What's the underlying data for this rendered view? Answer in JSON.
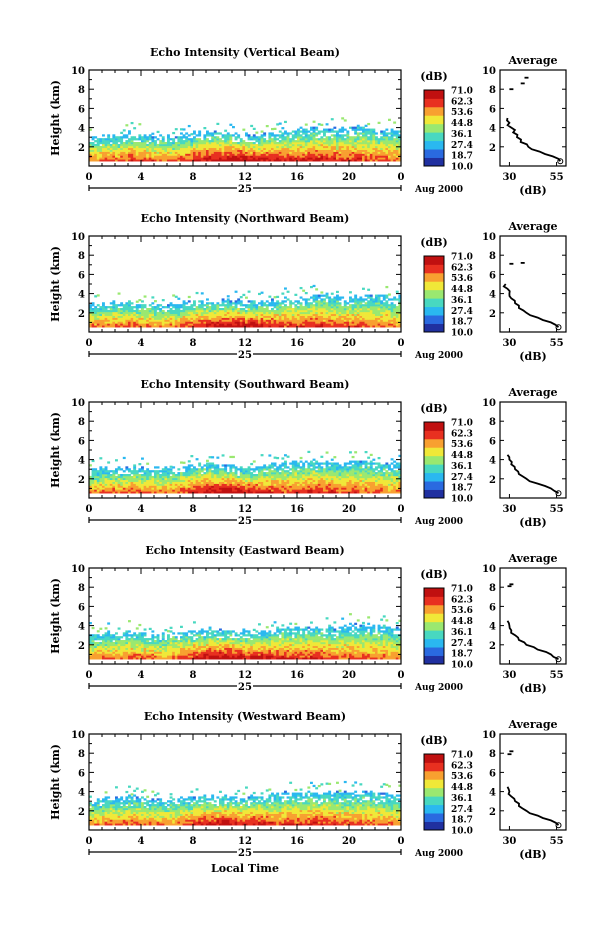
{
  "x_axis_label": "Local Time",
  "colorbar": {
    "unit": "(dB)",
    "ticks": [
      "71.0",
      "62.3",
      "53.6",
      "44.8",
      "36.1",
      "27.4",
      "18.7",
      "10.0"
    ],
    "colors": [
      "#2030a0",
      "#2a6ae0",
      "#2ab8f0",
      "#48d8c0",
      "#9ae870",
      "#f0e838",
      "#f8a030",
      "#e83020",
      "#c01010"
    ]
  },
  "date_label": "Aug 2000",
  "day_label": "25",
  "chart_data": [
    {
      "type": "heatmap",
      "title": "Echo Intensity (Vertical Beam)",
      "ylabel": "Height (km)",
      "xlabel": "Local Time",
      "x_ticks": [
        "0",
        "4",
        "8",
        "12",
        "16",
        "20",
        "0"
      ],
      "y_ticks": [
        "2",
        "4",
        "6",
        "8",
        "10"
      ],
      "xlim": [
        0,
        24
      ],
      "ylim": [
        0,
        10
      ],
      "top_height_km": [
        2.8,
        3.0,
        3.0,
        3.2,
        3.2,
        3.0,
        3.0,
        3.2,
        3.4,
        3.4,
        3.4,
        3.3,
        3.2,
        3.2,
        3.4,
        3.6,
        3.8,
        3.8,
        3.8,
        3.8,
        4.0,
        4.0,
        3.8,
        3.8
      ],
      "peak_db": [
        58,
        60,
        60,
        62,
        60,
        58,
        58,
        62,
        66,
        68,
        70,
        70,
        68,
        66,
        66,
        64,
        64,
        66,
        64,
        62,
        62,
        60,
        60,
        58
      ],
      "average_profile": {
        "title": "Average",
        "xlabel": "(dB)",
        "x_ticks": [
          "30",
          "55"
        ],
        "xlim": [
          25,
          60
        ],
        "y_ticks": [
          "2",
          "4",
          "6",
          "8",
          "10"
        ],
        "heights_km": [
          0.5,
          1.0,
          1.5,
          2.0,
          2.5,
          3.0,
          3.5,
          4.0,
          4.5,
          5.0
        ],
        "db": [
          57,
          53,
          46,
          40,
          36,
          34,
          32,
          31,
          30,
          29
        ],
        "extra_points": [
          [
            38,
            9.2
          ],
          [
            36,
            8.6
          ],
          [
            30,
            8.0
          ]
        ]
      }
    },
    {
      "type": "heatmap",
      "title": "Echo Intensity (Northward Beam)",
      "ylabel": "Height (km)",
      "xlabel": "Local Time",
      "x_ticks": [
        "0",
        "4",
        "8",
        "12",
        "16",
        "20",
        "0"
      ],
      "y_ticks": [
        "2",
        "4",
        "6",
        "8",
        "10"
      ],
      "xlim": [
        0,
        24
      ],
      "ylim": [
        0,
        10
      ],
      "top_height_km": [
        2.8,
        3.0,
        3.0,
        3.0,
        3.0,
        2.8,
        2.8,
        3.0,
        3.2,
        3.2,
        3.2,
        3.2,
        3.0,
        3.2,
        3.2,
        3.4,
        3.6,
        3.8,
        3.8,
        3.6,
        3.6,
        3.8,
        3.8,
        3.6
      ],
      "peak_db": [
        56,
        58,
        58,
        60,
        58,
        56,
        56,
        60,
        64,
        66,
        68,
        70,
        68,
        64,
        64,
        62,
        62,
        64,
        62,
        60,
        60,
        58,
        58,
        56
      ],
      "average_profile": {
        "title": "Average",
        "xlabel": "(dB)",
        "x_ticks": [
          "30",
          "55"
        ],
        "xlim": [
          25,
          60
        ],
        "y_ticks": [
          "2",
          "4",
          "6",
          "8",
          "10"
        ],
        "heights_km": [
          0.5,
          1.0,
          1.5,
          2.0,
          2.5,
          3.0,
          3.5,
          4.0,
          4.5,
          5.0
        ],
        "db": [
          56,
          52,
          45,
          39,
          35,
          33,
          31,
          30,
          29,
          28
        ],
        "extra_points": [
          [
            36,
            7.2
          ],
          [
            30,
            7.1
          ]
        ]
      }
    },
    {
      "type": "heatmap",
      "title": "Echo Intensity (Southward Beam)",
      "ylabel": "Height (km)",
      "xlabel": "Local Time",
      "x_ticks": [
        "0",
        "4",
        "8",
        "12",
        "16",
        "20",
        "0"
      ],
      "y_ticks": [
        "2",
        "4",
        "6",
        "8",
        "10"
      ],
      "xlim": [
        0,
        24
      ],
      "ylim": [
        0,
        10
      ],
      "top_height_km": [
        3.0,
        3.0,
        3.0,
        3.2,
        3.0,
        3.0,
        3.0,
        3.2,
        3.4,
        3.6,
        3.4,
        3.2,
        3.2,
        3.4,
        3.6,
        3.6,
        3.8,
        3.8,
        3.8,
        3.6,
        3.8,
        3.8,
        3.6,
        3.6
      ],
      "peak_db": [
        56,
        58,
        58,
        60,
        58,
        56,
        58,
        62,
        66,
        68,
        70,
        68,
        66,
        64,
        64,
        62,
        62,
        64,
        62,
        60,
        60,
        58,
        58,
        56
      ],
      "average_profile": {
        "title": "Average",
        "xlabel": "(dB)",
        "x_ticks": [
          "30",
          "55"
        ],
        "xlim": [
          25,
          60
        ],
        "y_ticks": [
          "2",
          "4",
          "6",
          "8",
          "10"
        ],
        "heights_km": [
          0.5,
          1.0,
          1.5,
          2.0,
          2.5,
          3.0,
          3.5,
          4.0,
          4.5
        ],
        "db": [
          56,
          52,
          45,
          39,
          35,
          33,
          31,
          30,
          29
        ],
        "extra_points": []
      }
    },
    {
      "type": "heatmap",
      "title": "Echo Intensity (Eastward Beam)",
      "ylabel": "Height (km)",
      "xlabel": "Local Time",
      "x_ticks": [
        "0",
        "4",
        "8",
        "12",
        "16",
        "20",
        "0"
      ],
      "y_ticks": [
        "2",
        "4",
        "6",
        "8",
        "10"
      ],
      "xlim": [
        0,
        24
      ],
      "ylim": [
        0,
        10
      ],
      "top_height_km": [
        3.0,
        3.2,
        3.2,
        3.2,
        3.2,
        3.0,
        3.2,
        3.4,
        3.4,
        3.6,
        3.4,
        3.4,
        3.2,
        3.4,
        3.6,
        3.8,
        3.8,
        3.8,
        3.8,
        3.8,
        4.0,
        4.0,
        3.8,
        3.8
      ],
      "peak_db": [
        56,
        58,
        58,
        60,
        58,
        56,
        58,
        62,
        66,
        68,
        70,
        68,
        66,
        66,
        64,
        62,
        62,
        64,
        62,
        60,
        60,
        58,
        58,
        56
      ],
      "average_profile": {
        "title": "Average",
        "xlabel": "(dB)",
        "x_ticks": [
          "30",
          "55"
        ],
        "xlim": [
          25,
          60
        ],
        "y_ticks": [
          "2",
          "4",
          "6",
          "8",
          "10"
        ],
        "heights_km": [
          0.5,
          1.0,
          1.5,
          2.0,
          2.5,
          3.0,
          3.5,
          4.0,
          4.5
        ],
        "db": [
          56,
          52,
          45,
          39,
          35,
          33,
          31,
          30,
          29
        ],
        "extra_points": [
          [
            30,
            8.3
          ],
          [
            29,
            8.1
          ]
        ]
      }
    },
    {
      "type": "heatmap",
      "title": "Echo Intensity (Westward Beam)",
      "ylabel": "Height (km)",
      "xlabel": "Local Time",
      "x_ticks": [
        "0",
        "4",
        "8",
        "12",
        "16",
        "20",
        "0"
      ],
      "y_ticks": [
        "2",
        "4",
        "6",
        "8",
        "10"
      ],
      "xlim": [
        0,
        24
      ],
      "ylim": [
        0,
        10
      ],
      "top_height_km": [
        3.0,
        3.2,
        3.2,
        3.4,
        3.2,
        3.2,
        3.2,
        3.4,
        3.4,
        3.4,
        3.4,
        3.2,
        3.4,
        3.6,
        3.6,
        3.8,
        3.8,
        3.8,
        3.8,
        3.8,
        3.8,
        4.0,
        3.8,
        3.8
      ],
      "peak_db": [
        56,
        58,
        58,
        60,
        58,
        56,
        56,
        60,
        64,
        66,
        68,
        66,
        64,
        64,
        62,
        62,
        62,
        64,
        62,
        60,
        60,
        58,
        58,
        56
      ],
      "average_profile": {
        "title": "Average",
        "xlabel": "(dB)",
        "x_ticks": [
          "30",
          "55"
        ],
        "xlim": [
          25,
          60
        ],
        "y_ticks": [
          "2",
          "4",
          "6",
          "8",
          "10"
        ],
        "heights_km": [
          0.5,
          1.0,
          1.5,
          2.0,
          2.5,
          3.0,
          3.5,
          4.0,
          4.5
        ],
        "db": [
          56,
          52,
          45,
          39,
          35,
          33,
          31,
          30,
          29
        ],
        "extra_points": [
          [
            30,
            8.2
          ],
          [
            29,
            7.9
          ]
        ]
      }
    }
  ]
}
